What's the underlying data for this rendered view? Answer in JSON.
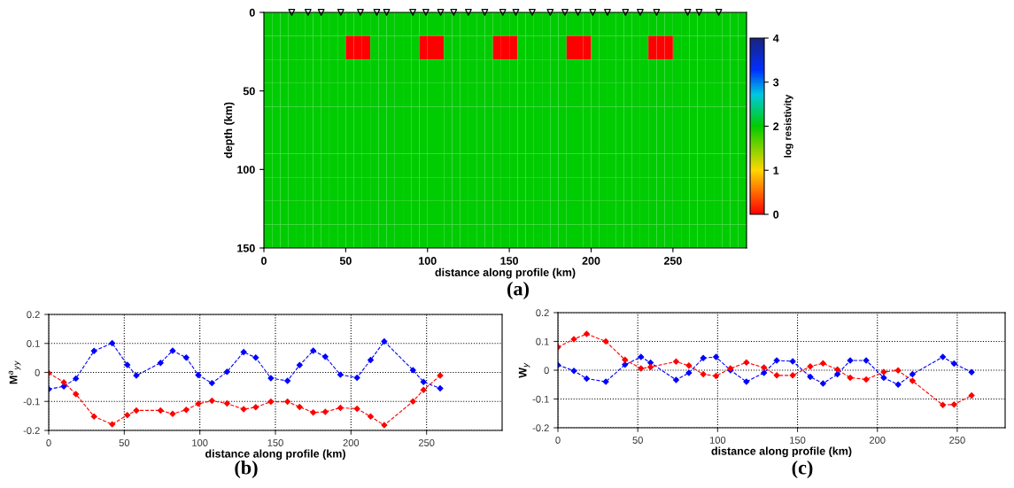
{
  "chart_data": [
    {
      "type": "heatmap",
      "xlabel": "distance along profile (km)",
      "ylabel": "depth (km)",
      "clabel": "log resistivity",
      "annotations": [
        "(a)"
      ],
      "x": [
        2.5,
        7.5,
        12.5,
        17.5,
        22.5,
        27.5,
        32.5,
        37.5,
        42.5,
        47.5,
        52.5,
        57.5,
        62.5,
        67.5,
        72.5,
        77.5,
        82.5,
        87.5,
        92.5,
        97.5,
        102.5,
        107.5,
        112.5,
        117.5,
        122.5,
        127.5,
        132.5,
        137.5,
        142.5,
        147.5,
        152.5,
        157.5,
        162.5,
        167.5,
        172.5,
        177.5,
        182.5,
        187.5,
        192.5,
        197.5,
        202.5,
        207.5,
        212.5,
        217.5,
        222.5,
        227.5,
        232.5,
        237.5,
        242.5,
        247.5,
        252.5,
        257.5,
        262.5,
        267.5,
        272.5,
        277.5,
        282.5,
        287.5,
        292.5
      ],
      "y": [
        7.5,
        22.5,
        37.5,
        52.5,
        67.5,
        82.5,
        97.5,
        112.5,
        127.5,
        142.5
      ],
      "cells": [
        [
          2,
          2,
          2,
          2,
          2,
          2,
          2,
          2,
          2,
          2,
          2,
          2,
          2,
          2,
          2,
          2,
          2,
          2,
          2,
          2,
          2,
          2,
          2,
          2,
          2,
          2,
          2,
          2,
          2,
          2,
          2,
          2,
          2,
          2,
          2,
          2,
          2,
          2,
          2,
          2,
          2,
          2,
          2,
          2,
          2,
          2,
          2,
          2,
          2,
          2,
          2,
          2,
          2,
          2,
          2,
          2,
          2,
          2,
          2
        ],
        [
          2,
          2,
          2,
          2,
          2,
          2,
          2,
          2,
          2,
          2,
          0,
          0,
          0,
          2,
          2,
          2,
          2,
          2,
          2,
          0,
          0,
          0,
          2,
          2,
          2,
          2,
          2,
          2,
          0,
          0,
          0,
          2,
          2,
          2,
          2,
          2,
          2,
          0,
          0,
          0,
          2,
          2,
          2,
          2,
          2,
          2,
          2,
          0,
          0,
          0,
          2,
          2,
          2,
          2,
          2,
          2,
          2,
          2,
          2
        ],
        [
          2,
          2,
          2,
          2,
          2,
          2,
          2,
          2,
          2,
          2,
          2,
          2,
          2,
          2,
          2,
          2,
          2,
          2,
          2,
          2,
          2,
          2,
          2,
          2,
          2,
          2,
          2,
          2,
          2,
          2,
          2,
          2,
          2,
          2,
          2,
          2,
          2,
          2,
          2,
          2,
          2,
          2,
          2,
          2,
          2,
          2,
          2,
          2,
          2,
          2,
          2,
          2,
          2,
          2,
          2,
          2,
          2,
          2,
          2
        ],
        [
          2,
          2,
          2,
          2,
          2,
          2,
          2,
          2,
          2,
          2,
          2,
          2,
          2,
          2,
          2,
          2,
          2,
          2,
          2,
          2,
          2,
          2,
          2,
          2,
          2,
          2,
          2,
          2,
          2,
          2,
          2,
          2,
          2,
          2,
          2,
          2,
          2,
          2,
          2,
          2,
          2,
          2,
          2,
          2,
          2,
          2,
          2,
          2,
          2,
          2,
          2,
          2,
          2,
          2,
          2,
          2,
          2,
          2,
          2
        ],
        [
          2,
          2,
          2,
          2,
          2,
          2,
          2,
          2,
          2,
          2,
          2,
          2,
          2,
          2,
          2,
          2,
          2,
          2,
          2,
          2,
          2,
          2,
          2,
          2,
          2,
          2,
          2,
          2,
          2,
          2,
          2,
          2,
          2,
          2,
          2,
          2,
          2,
          2,
          2,
          2,
          2,
          2,
          2,
          2,
          2,
          2,
          2,
          2,
          2,
          2,
          2,
          2,
          2,
          2,
          2,
          2,
          2,
          2,
          2
        ],
        [
          2,
          2,
          2,
          2,
          2,
          2,
          2,
          2,
          2,
          2,
          2,
          2,
          2,
          2,
          2,
          2,
          2,
          2,
          2,
          2,
          2,
          2,
          2,
          2,
          2,
          2,
          2,
          2,
          2,
          2,
          2,
          2,
          2,
          2,
          2,
          2,
          2,
          2,
          2,
          2,
          2,
          2,
          2,
          2,
          2,
          2,
          2,
          2,
          2,
          2,
          2,
          2,
          2,
          2,
          2,
          2,
          2,
          2,
          2
        ],
        [
          2,
          2,
          2,
          2,
          2,
          2,
          2,
          2,
          2,
          2,
          2,
          2,
          2,
          2,
          2,
          2,
          2,
          2,
          2,
          2,
          2,
          2,
          2,
          2,
          2,
          2,
          2,
          2,
          2,
          2,
          2,
          2,
          2,
          2,
          2,
          2,
          2,
          2,
          2,
          2,
          2,
          2,
          2,
          2,
          2,
          2,
          2,
          2,
          2,
          2,
          2,
          2,
          2,
          2,
          2,
          2,
          2,
          2,
          2
        ],
        [
          2,
          2,
          2,
          2,
          2,
          2,
          2,
          2,
          2,
          2,
          2,
          2,
          2,
          2,
          2,
          2,
          2,
          2,
          2,
          2,
          2,
          2,
          2,
          2,
          2,
          2,
          2,
          2,
          2,
          2,
          2,
          2,
          2,
          2,
          2,
          2,
          2,
          2,
          2,
          2,
          2,
          2,
          2,
          2,
          2,
          2,
          2,
          2,
          2,
          2,
          2,
          2,
          2,
          2,
          2,
          2,
          2,
          2,
          2
        ],
        [
          2,
          2,
          2,
          2,
          2,
          2,
          2,
          2,
          2,
          2,
          2,
          2,
          2,
          2,
          2,
          2,
          2,
          2,
          2,
          2,
          2,
          2,
          2,
          2,
          2,
          2,
          2,
          2,
          2,
          2,
          2,
          2,
          2,
          2,
          2,
          2,
          2,
          2,
          2,
          2,
          2,
          2,
          2,
          2,
          2,
          2,
          2,
          2,
          2,
          2,
          2,
          2,
          2,
          2,
          2,
          2,
          2,
          2,
          2
        ],
        [
          2,
          2,
          2,
          2,
          2,
          2,
          2,
          2,
          2,
          2,
          2,
          2,
          2,
          2,
          2,
          2,
          2,
          2,
          2,
          2,
          2,
          2,
          2,
          2,
          2,
          2,
          2,
          2,
          2,
          2,
          2,
          2,
          2,
          2,
          2,
          2,
          2,
          2,
          2,
          2,
          2,
          2,
          2,
          2,
          2,
          2,
          2,
          2,
          2,
          2,
          2,
          2,
          2,
          2,
          2,
          2,
          2,
          2,
          2
        ]
      ],
      "clim": [
        0,
        4
      ],
      "cticks": [
        0,
        1,
        2,
        3,
        4
      ],
      "xlim": [
        0,
        295
      ],
      "ylim": [
        150,
        0
      ],
      "xticks": [
        0,
        50,
        100,
        150,
        200,
        250
      ],
      "yticks": [
        0,
        50,
        100,
        150
      ],
      "series": [
        {
          "type": "scatter",
          "marker": "triangle",
          "color": "#000000",
          "x": [
            17,
            27,
            35,
            47,
            59,
            69,
            75,
            91,
            99,
            108,
            116,
            125,
            135,
            146,
            154,
            164,
            175,
            184,
            192,
            201,
            210,
            221,
            230,
            240,
            259,
            266,
            278
          ],
          "values": [
            0,
            0,
            0,
            0,
            0,
            0,
            0,
            0,
            0,
            0,
            0,
            0,
            0,
            0,
            0,
            0,
            0,
            0,
            0,
            0,
            0,
            0,
            0,
            0,
            0,
            0,
            0
          ]
        }
      ]
    },
    {
      "type": "line",
      "xlabel": "distance along profile (km)",
      "ylabel": "M$^{a}$$_{yy}$",
      "annotations": [
        "(b)"
      ],
      "marker": "diamond",
      "line_style": "dashed",
      "grid": true,
      "xlim": [
        0,
        300
      ],
      "ylim": [
        -0.2,
        0.2
      ],
      "xticks": [
        0,
        50,
        100,
        150,
        200,
        250
      ],
      "yticks": [
        -0.2,
        -0.1,
        0,
        0.1,
        0.2
      ],
      "x": [
        0,
        10,
        18,
        30,
        42,
        52,
        58,
        74,
        82,
        91,
        99,
        108,
        118,
        129,
        137,
        147,
        158,
        166,
        175,
        183,
        193,
        204,
        213,
        222,
        241,
        248,
        259
      ],
      "series": [
        {
          "color": "#0000ff",
          "values": [
            -0.058,
            -0.048,
            -0.021,
            0.074,
            0.101,
            0.026,
            -0.011,
            0.033,
            0.075,
            0.051,
            -0.009,
            -0.037,
            0.002,
            0.07,
            0.051,
            -0.02,
            -0.029,
            0.025,
            0.075,
            0.054,
            -0.008,
            -0.018,
            0.043,
            0.107,
            0.008,
            -0.033,
            -0.055
          ]
        },
        {
          "color": "#ff0000",
          "values": [
            -0.002,
            -0.034,
            -0.075,
            -0.152,
            -0.179,
            -0.147,
            -0.131,
            -0.131,
            -0.143,
            -0.129,
            -0.108,
            -0.098,
            -0.107,
            -0.127,
            -0.12,
            -0.101,
            -0.101,
            -0.119,
            -0.138,
            -0.136,
            -0.122,
            -0.125,
            -0.152,
            -0.182,
            -0.1,
            -0.06,
            -0.011
          ]
        }
      ]
    },
    {
      "type": "line",
      "xlabel": "distance along profile (km)",
      "ylabel": "W$_{y}$",
      "annotations": [
        "(c)"
      ],
      "marker": "diamond",
      "line_style": "dashed",
      "grid": true,
      "xlim": [
        0,
        280
      ],
      "ylim": [
        -0.2,
        0.2
      ],
      "xticks": [
        0,
        50,
        100,
        150,
        200,
        250
      ],
      "yticks": [
        -0.2,
        -0.1,
        0,
        0.1,
        0.2
      ],
      "x": [
        0,
        10,
        18,
        30,
        42,
        52,
        58,
        74,
        82,
        91,
        99,
        108,
        118,
        129,
        137,
        147,
        158,
        166,
        175,
        183,
        193,
        204,
        213,
        222,
        241,
        248,
        259
      ],
      "series": [
        {
          "color": "#0000ff",
          "values": [
            0.018,
            -0.002,
            -0.029,
            -0.04,
            0.019,
            0.046,
            0.026,
            -0.034,
            -0.009,
            0.042,
            0.046,
            0.0,
            -0.04,
            -0.009,
            0.034,
            0.031,
            -0.023,
            -0.046,
            -0.014,
            0.034,
            0.034,
            -0.026,
            -0.05,
            -0.014,
            0.046,
            0.023,
            -0.007
          ]
        },
        {
          "color": "#ff0000",
          "values": [
            0.08,
            0.108,
            0.126,
            0.1,
            0.036,
            0.006,
            0.011,
            0.03,
            0.016,
            -0.014,
            -0.02,
            0.006,
            0.027,
            0.009,
            -0.018,
            -0.018,
            0.013,
            0.024,
            0.002,
            -0.026,
            -0.032,
            -0.006,
            -0.001,
            -0.037,
            -0.121,
            -0.119,
            -0.088
          ]
        }
      ]
    }
  ]
}
